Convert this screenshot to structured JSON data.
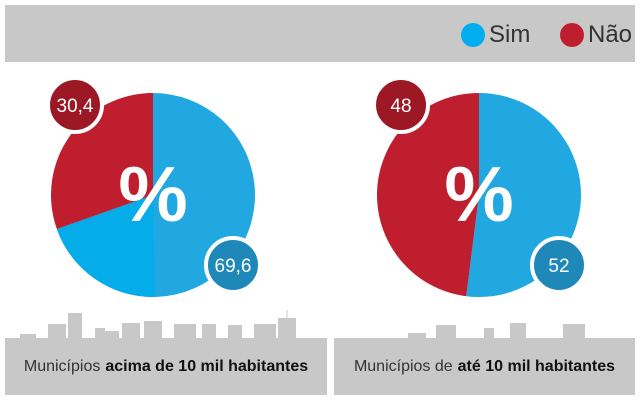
{
  "legend": {
    "items": [
      {
        "label": "Sim",
        "color": "#00aeef"
      },
      {
        "label": "Não",
        "color": "#be1e2d"
      }
    ]
  },
  "chart_data": [
    {
      "type": "pie",
      "title": "Municípios acima de 10 mil habitantes",
      "title_prefix": "Municípios",
      "title_bold": "acima de 10 mil habitantes",
      "center_label": "%",
      "slices": [
        {
          "name": "Sim",
          "value": 69.6,
          "label": "69,6"
        },
        {
          "name": "Não",
          "value": 30.4,
          "label": "30,4"
        }
      ]
    },
    {
      "type": "pie",
      "title": "Municípios de até 10 mil habitantes",
      "title_prefix": "Municípios de",
      "title_bold": "até 10 mil habitantes",
      "center_label": "%",
      "slices": [
        {
          "name": "Sim",
          "value": 52,
          "label": "52"
        },
        {
          "name": "Não",
          "value": 48,
          "label": "48"
        }
      ]
    }
  ]
}
